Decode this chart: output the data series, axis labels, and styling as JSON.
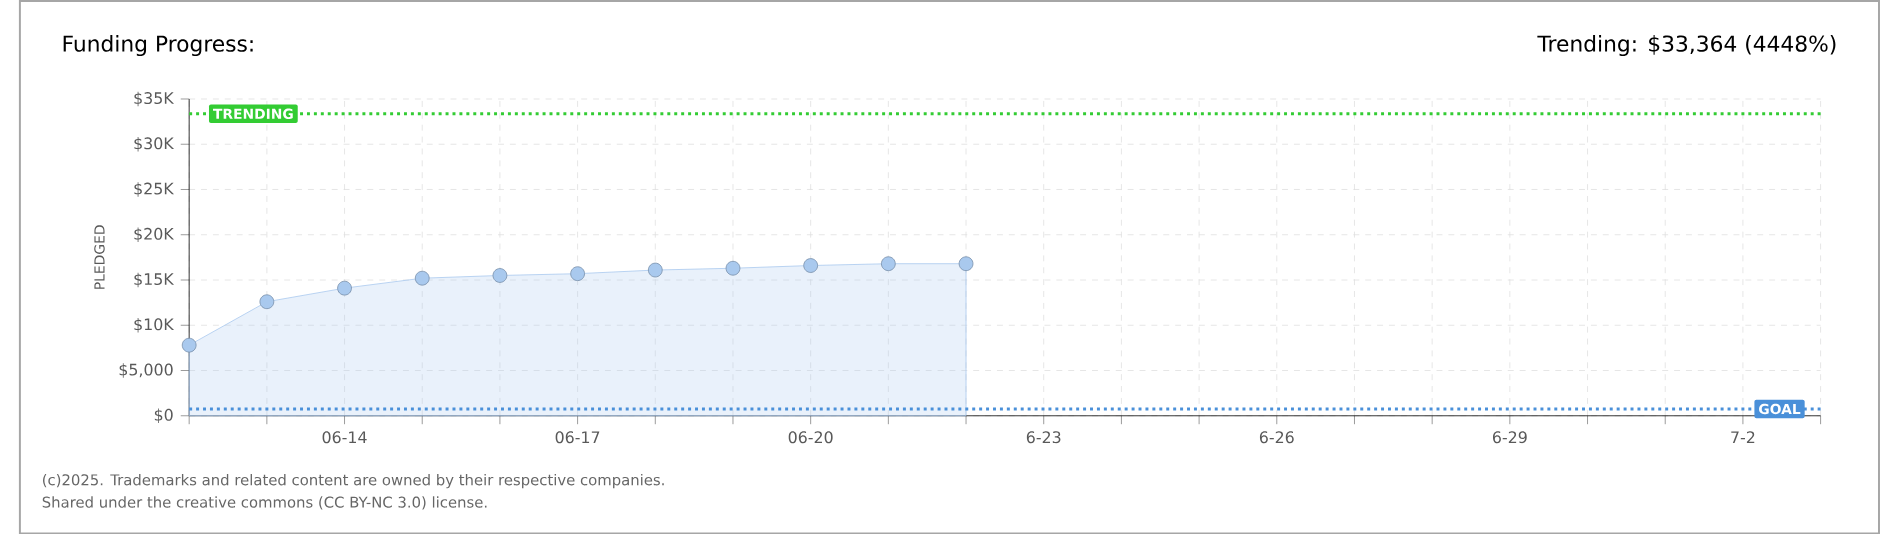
{
  "chart_data": {
    "type": "area",
    "title": "Funding Progress:",
    "subtitle": "Trending: $33,364 (4448%)",
    "ylabel": "PLEDGED",
    "annotations": [
      "(c)2025. Trademarks and related content are owned by their respective companies.",
      "Shared under the creative commons (CC BY-NC 3.0) license."
    ],
    "x": [
      "2025-06-12",
      "2025-06-13",
      "2025-06-14",
      "2025-06-15",
      "2025-06-16",
      "2025-06-17",
      "2025-06-18",
      "2025-06-19",
      "2025-06-20",
      "2025-06-21",
      "2025-06-22"
    ],
    "series": [
      {
        "color": "#a9c9ee",
        "values": [
          7800,
          12600,
          14100,
          15200,
          15500,
          15700,
          16100,
          16300,
          16600,
          16800,
          16800
        ]
      }
    ],
    "marker": "circle",
    "grid": true,
    "xlim": [
      "2025-06-12",
      "2025-07-03"
    ],
    "xticks": [
      {
        "value": "2025-06-12",
        "label": null
      },
      {
        "value": "2025-06-13",
        "label": null
      },
      {
        "value": "2025-06-14",
        "label": "06-14"
      },
      {
        "value": "2025-06-15",
        "label": null
      },
      {
        "value": "2025-06-16",
        "label": null
      },
      {
        "value": "2025-06-17",
        "label": "06-17"
      },
      {
        "value": "2025-06-18",
        "label": null
      },
      {
        "value": "2025-06-19",
        "label": null
      },
      {
        "value": "2025-06-20",
        "label": "06-20"
      },
      {
        "value": "2025-06-21",
        "label": null
      },
      {
        "value": "2025-06-22",
        "label": null
      },
      {
        "value": "2025-06-23",
        "label": "6-23"
      },
      {
        "value": "2025-06-24",
        "label": null
      },
      {
        "value": "2025-06-25",
        "label": null
      },
      {
        "value": "2025-06-26",
        "label": "6-26"
      },
      {
        "value": "2025-06-27",
        "label": null
      },
      {
        "value": "2025-06-28",
        "label": null
      },
      {
        "value": "2025-06-29",
        "label": "6-29"
      },
      {
        "value": "2025-06-30",
        "label": null
      },
      {
        "value": "2025-07-01",
        "label": null
      },
      {
        "value": "2025-07-02",
        "label": "7-2"
      },
      {
        "value": "2025-07-03",
        "label": null
      }
    ],
    "ylim": [
      0,
      35000
    ],
    "yticks": [
      {
        "value": 0,
        "label": "$0"
      },
      {
        "value": 5000,
        "label": "$5,000"
      },
      {
        "value": 10000,
        "label": "$10K"
      },
      {
        "value": 15000,
        "label": "$15K"
      },
      {
        "value": 20000,
        "label": "$20K"
      },
      {
        "value": 25000,
        "label": "$25K"
      },
      {
        "value": 30000,
        "label": "$30K"
      },
      {
        "value": 35000,
        "label": "$35K"
      }
    ],
    "ref_lines": [
      {
        "axis": "y",
        "value": 33364,
        "label": "TRENDING",
        "color": "#33cc33",
        "line_style": "dotted"
      },
      {
        "axis": "y",
        "value": 750,
        "label": "GOAL",
        "color": "#4a90d9",
        "line_style": "dotted"
      }
    ]
  }
}
